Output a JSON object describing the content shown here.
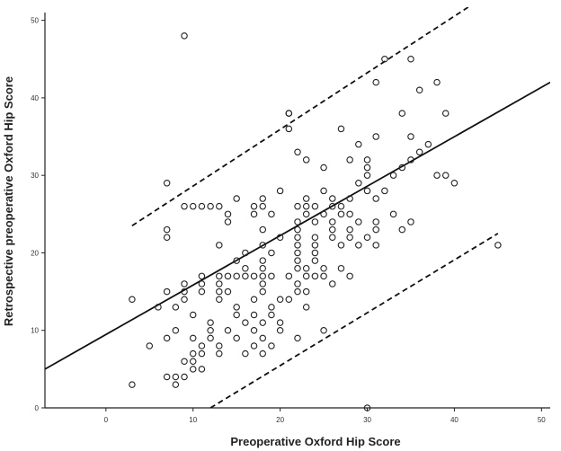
{
  "chart_data": {
    "type": "scatter",
    "title": "",
    "xlabel": "Preoperative Oxford Hip Score",
    "ylabel": "Retrospective preoperative Oxford Hip Score",
    "xlim": [
      -7,
      51
    ],
    "ylim": [
      0,
      51
    ],
    "xticks": [
      0,
      10,
      20,
      30,
      40,
      50
    ],
    "yticks": [
      0,
      10,
      20,
      30,
      40,
      50
    ],
    "grid": false,
    "legend": "none",
    "points": [
      {
        "x": 9,
        "y": 48
      },
      {
        "x": 32,
        "y": 45
      },
      {
        "x": 35,
        "y": 45
      },
      {
        "x": 38,
        "y": 42
      },
      {
        "x": 31,
        "y": 42
      },
      {
        "x": 36,
        "y": 41
      },
      {
        "x": 39,
        "y": 38
      },
      {
        "x": 21,
        "y": 38
      },
      {
        "x": 21,
        "y": 38
      },
      {
        "x": 34,
        "y": 38
      },
      {
        "x": 21,
        "y": 36
      },
      {
        "x": 27,
        "y": 36
      },
      {
        "x": 35,
        "y": 35
      },
      {
        "x": 31,
        "y": 35
      },
      {
        "x": 29,
        "y": 34
      },
      {
        "x": 37,
        "y": 34
      },
      {
        "x": 22,
        "y": 33
      },
      {
        "x": 36,
        "y": 33
      },
      {
        "x": 35,
        "y": 32
      },
      {
        "x": 30,
        "y": 32
      },
      {
        "x": 23,
        "y": 32
      },
      {
        "x": 28,
        "y": 32
      },
      {
        "x": 34,
        "y": 31
      },
      {
        "x": 30,
        "y": 31
      },
      {
        "x": 25,
        "y": 31
      },
      {
        "x": 30,
        "y": 30
      },
      {
        "x": 38,
        "y": 30
      },
      {
        "x": 33,
        "y": 30
      },
      {
        "x": 39,
        "y": 30
      },
      {
        "x": 7,
        "y": 29
      },
      {
        "x": 29,
        "y": 29
      },
      {
        "x": 40,
        "y": 29
      },
      {
        "x": 20,
        "y": 28
      },
      {
        "x": 25,
        "y": 28
      },
      {
        "x": 30,
        "y": 28
      },
      {
        "x": 32,
        "y": 28
      },
      {
        "x": 15,
        "y": 27
      },
      {
        "x": 18,
        "y": 27
      },
      {
        "x": 23,
        "y": 27
      },
      {
        "x": 26,
        "y": 27
      },
      {
        "x": 28,
        "y": 27
      },
      {
        "x": 31,
        "y": 27
      },
      {
        "x": 9,
        "y": 26
      },
      {
        "x": 10,
        "y": 26
      },
      {
        "x": 11,
        "y": 26
      },
      {
        "x": 12,
        "y": 26
      },
      {
        "x": 13,
        "y": 26
      },
      {
        "x": 17,
        "y": 26
      },
      {
        "x": 18,
        "y": 26
      },
      {
        "x": 22,
        "y": 26
      },
      {
        "x": 23,
        "y": 26
      },
      {
        "x": 24,
        "y": 26
      },
      {
        "x": 26,
        "y": 26
      },
      {
        "x": 27,
        "y": 26
      },
      {
        "x": 14,
        "y": 25
      },
      {
        "x": 17,
        "y": 25
      },
      {
        "x": 19,
        "y": 25
      },
      {
        "x": 23,
        "y": 25
      },
      {
        "x": 25,
        "y": 25
      },
      {
        "x": 27,
        "y": 25
      },
      {
        "x": 28,
        "y": 25
      },
      {
        "x": 33,
        "y": 25
      },
      {
        "x": 14,
        "y": 24
      },
      {
        "x": 22,
        "y": 24
      },
      {
        "x": 24,
        "y": 24
      },
      {
        "x": 26,
        "y": 24
      },
      {
        "x": 29,
        "y": 24
      },
      {
        "x": 31,
        "y": 24
      },
      {
        "x": 35,
        "y": 24
      },
      {
        "x": 7,
        "y": 23
      },
      {
        "x": 18,
        "y": 23
      },
      {
        "x": 22,
        "y": 23
      },
      {
        "x": 26,
        "y": 23
      },
      {
        "x": 28,
        "y": 23
      },
      {
        "x": 31,
        "y": 23
      },
      {
        "x": 34,
        "y": 23
      },
      {
        "x": 7,
        "y": 22
      },
      {
        "x": 20,
        "y": 22
      },
      {
        "x": 22,
        "y": 22
      },
      {
        "x": 24,
        "y": 22
      },
      {
        "x": 26,
        "y": 22
      },
      {
        "x": 28,
        "y": 22
      },
      {
        "x": 30,
        "y": 22
      },
      {
        "x": 13,
        "y": 21
      },
      {
        "x": 18,
        "y": 21
      },
      {
        "x": 22,
        "y": 21
      },
      {
        "x": 24,
        "y": 21
      },
      {
        "x": 27,
        "y": 21
      },
      {
        "x": 29,
        "y": 21
      },
      {
        "x": 31,
        "y": 21
      },
      {
        "x": 45,
        "y": 21
      },
      {
        "x": 16,
        "y": 20
      },
      {
        "x": 19,
        "y": 20
      },
      {
        "x": 22,
        "y": 20
      },
      {
        "x": 24,
        "y": 20
      },
      {
        "x": 15,
        "y": 19
      },
      {
        "x": 18,
        "y": 19
      },
      {
        "x": 22,
        "y": 19
      },
      {
        "x": 24,
        "y": 19
      },
      {
        "x": 16,
        "y": 18
      },
      {
        "x": 18,
        "y": 18
      },
      {
        "x": 22,
        "y": 18
      },
      {
        "x": 23,
        "y": 18
      },
      {
        "x": 25,
        "y": 18
      },
      {
        "x": 27,
        "y": 18
      },
      {
        "x": 11,
        "y": 17
      },
      {
        "x": 13,
        "y": 17
      },
      {
        "x": 14,
        "y": 17
      },
      {
        "x": 15,
        "y": 17
      },
      {
        "x": 16,
        "y": 17
      },
      {
        "x": 17,
        "y": 17
      },
      {
        "x": 18,
        "y": 17
      },
      {
        "x": 19,
        "y": 17
      },
      {
        "x": 21,
        "y": 17
      },
      {
        "x": 23,
        "y": 17
      },
      {
        "x": 24,
        "y": 17
      },
      {
        "x": 25,
        "y": 17
      },
      {
        "x": 28,
        "y": 17
      },
      {
        "x": 9,
        "y": 16
      },
      {
        "x": 11,
        "y": 16
      },
      {
        "x": 13,
        "y": 16
      },
      {
        "x": 18,
        "y": 16
      },
      {
        "x": 22,
        "y": 16
      },
      {
        "x": 26,
        "y": 16
      },
      {
        "x": 7,
        "y": 15
      },
      {
        "x": 9,
        "y": 15
      },
      {
        "x": 11,
        "y": 15
      },
      {
        "x": 13,
        "y": 15
      },
      {
        "x": 14,
        "y": 15
      },
      {
        "x": 18,
        "y": 15
      },
      {
        "x": 22,
        "y": 15
      },
      {
        "x": 23,
        "y": 15
      },
      {
        "x": 3,
        "y": 14
      },
      {
        "x": 9,
        "y": 14
      },
      {
        "x": 13,
        "y": 14
      },
      {
        "x": 17,
        "y": 14
      },
      {
        "x": 20,
        "y": 14
      },
      {
        "x": 21,
        "y": 14
      },
      {
        "x": 6,
        "y": 13
      },
      {
        "x": 8,
        "y": 13
      },
      {
        "x": 15,
        "y": 13
      },
      {
        "x": 19,
        "y": 13
      },
      {
        "x": 23,
        "y": 13
      },
      {
        "x": 10,
        "y": 12
      },
      {
        "x": 15,
        "y": 12
      },
      {
        "x": 17,
        "y": 12
      },
      {
        "x": 19,
        "y": 12
      },
      {
        "x": 12,
        "y": 11
      },
      {
        "x": 16,
        "y": 11
      },
      {
        "x": 18,
        "y": 11
      },
      {
        "x": 20,
        "y": 11
      },
      {
        "x": 8,
        "y": 10
      },
      {
        "x": 12,
        "y": 10
      },
      {
        "x": 14,
        "y": 10
      },
      {
        "x": 17,
        "y": 10
      },
      {
        "x": 20,
        "y": 10
      },
      {
        "x": 25,
        "y": 10
      },
      {
        "x": 7,
        "y": 9
      },
      {
        "x": 10,
        "y": 9
      },
      {
        "x": 12,
        "y": 9
      },
      {
        "x": 15,
        "y": 9
      },
      {
        "x": 18,
        "y": 9
      },
      {
        "x": 22,
        "y": 9
      },
      {
        "x": 5,
        "y": 8
      },
      {
        "x": 11,
        "y": 8
      },
      {
        "x": 13,
        "y": 8
      },
      {
        "x": 17,
        "y": 8
      },
      {
        "x": 19,
        "y": 8
      },
      {
        "x": 10,
        "y": 7
      },
      {
        "x": 11,
        "y": 7
      },
      {
        "x": 13,
        "y": 7
      },
      {
        "x": 16,
        "y": 7
      },
      {
        "x": 18,
        "y": 7
      },
      {
        "x": 9,
        "y": 6
      },
      {
        "x": 10,
        "y": 6
      },
      {
        "x": 10,
        "y": 5
      },
      {
        "x": 11,
        "y": 5
      },
      {
        "x": 7,
        "y": 4
      },
      {
        "x": 8,
        "y": 4
      },
      {
        "x": 9,
        "y": 4
      },
      {
        "x": 3,
        "y": 3
      },
      {
        "x": 8,
        "y": 3
      },
      {
        "x": 30,
        "y": 0
      }
    ],
    "regression_line": {
      "style": "solid",
      "points": [
        [
          -7,
          5
        ],
        [
          51,
          42
        ]
      ]
    },
    "prediction_bands": [
      {
        "style": "dashed",
        "points": [
          [
            3,
            23.5
          ],
          [
            42,
            52
          ]
        ]
      },
      {
        "style": "dashed",
        "points": [
          [
            12,
            0
          ],
          [
            45,
            22.5
          ]
        ]
      }
    ]
  }
}
